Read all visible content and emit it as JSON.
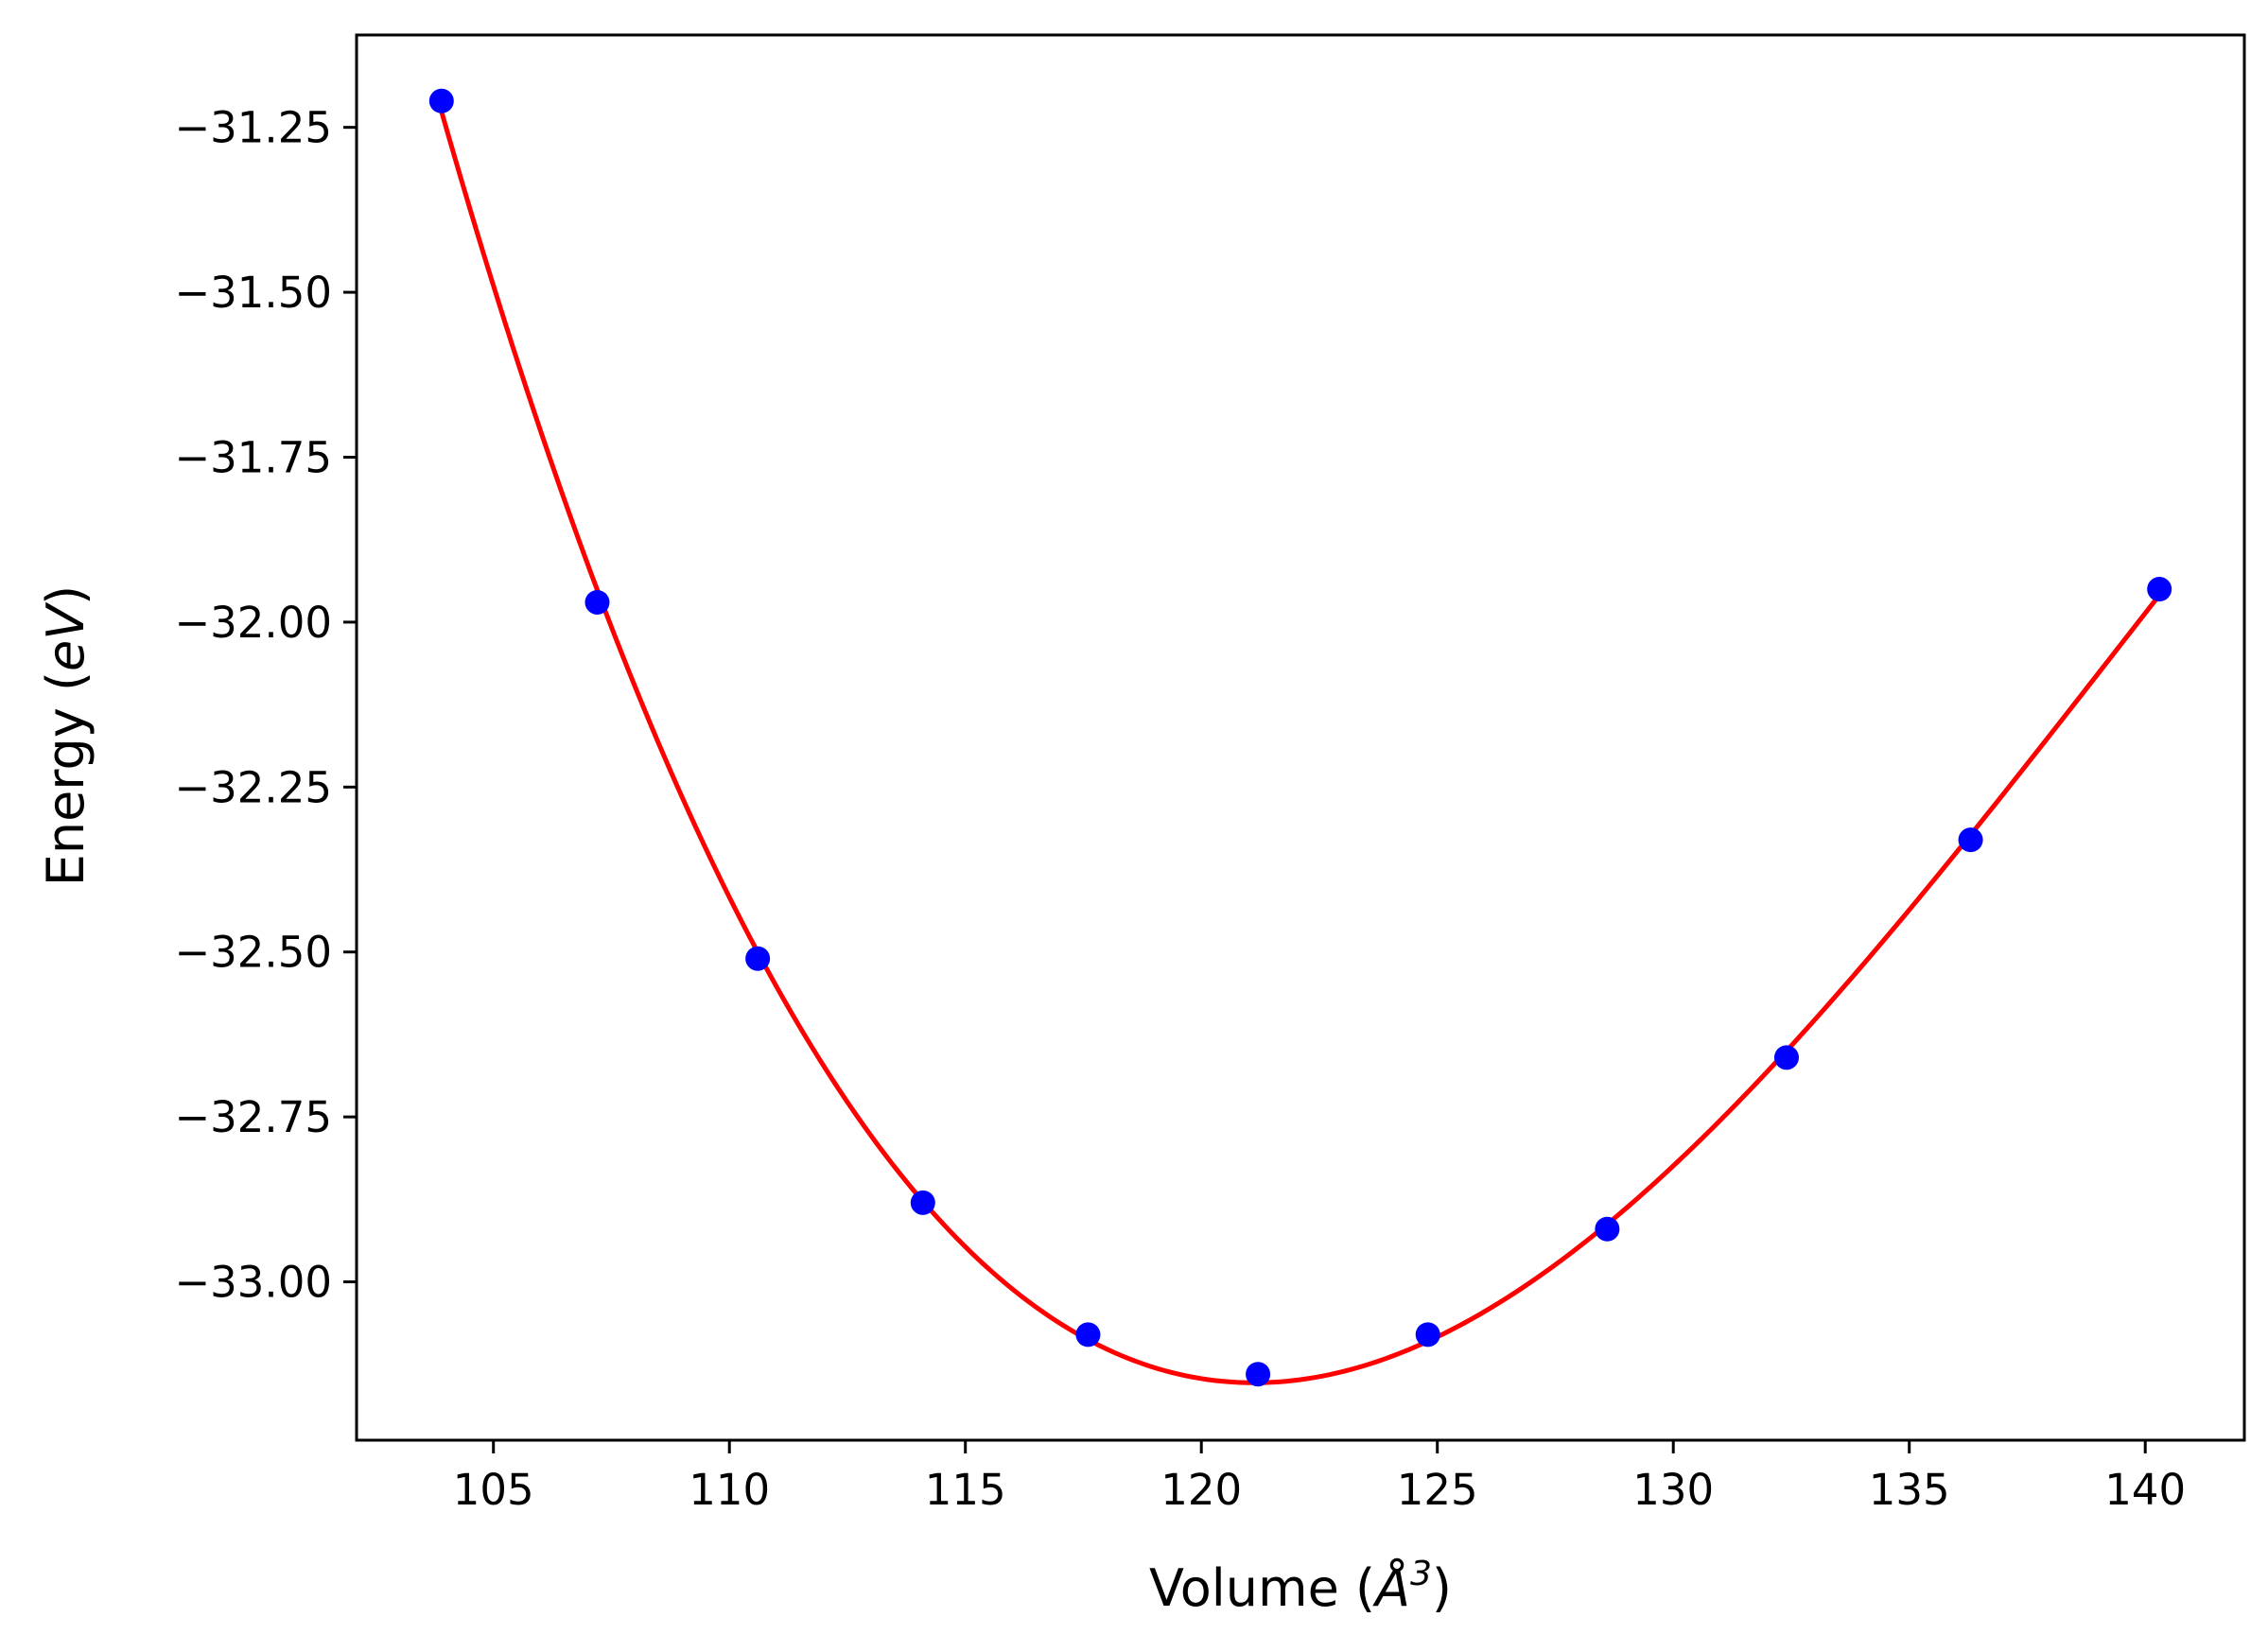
{
  "chart_data": {
    "type": "scatter",
    "title": "",
    "xlabel_pre": "Volume (",
    "xlabel_sym": "Å",
    "xlabel_sup": "3",
    "xlabel_post": ")",
    "ylabel_pre": "Energy (",
    "ylabel_sym": "eV",
    "ylabel_post": ")",
    "xlim": [
      102.1,
      142.1
    ],
    "ylim": [
      -33.24,
      -31.11
    ],
    "xticks": [
      105,
      110,
      115,
      120,
      125,
      130,
      135,
      140
    ],
    "yticks": [
      -31.25,
      -31.5,
      -31.75,
      -32.0,
      -32.25,
      -32.5,
      -32.75,
      -33.0
    ],
    "ytick_labels": [
      "−31.25",
      "−31.50",
      "−31.75",
      "−32.00",
      "−32.25",
      "−32.50",
      "−32.75",
      "−33.00"
    ],
    "grid": false,
    "series": [
      {
        "kind": "points",
        "color": "#0000ff",
        "x": [
          103.9,
          107.2,
          110.6,
          114.1,
          117.6,
          121.2,
          124.8,
          128.6,
          132.4,
          136.3,
          140.3
        ],
        "y": [
          -31.21,
          -31.97,
          -32.51,
          -32.88,
          -33.08,
          -33.14,
          -33.08,
          -32.92,
          -32.66,
          -32.33,
          -31.95
        ]
      },
      {
        "kind": "fit-curve",
        "color": "#ff0000"
      }
    ]
  }
}
